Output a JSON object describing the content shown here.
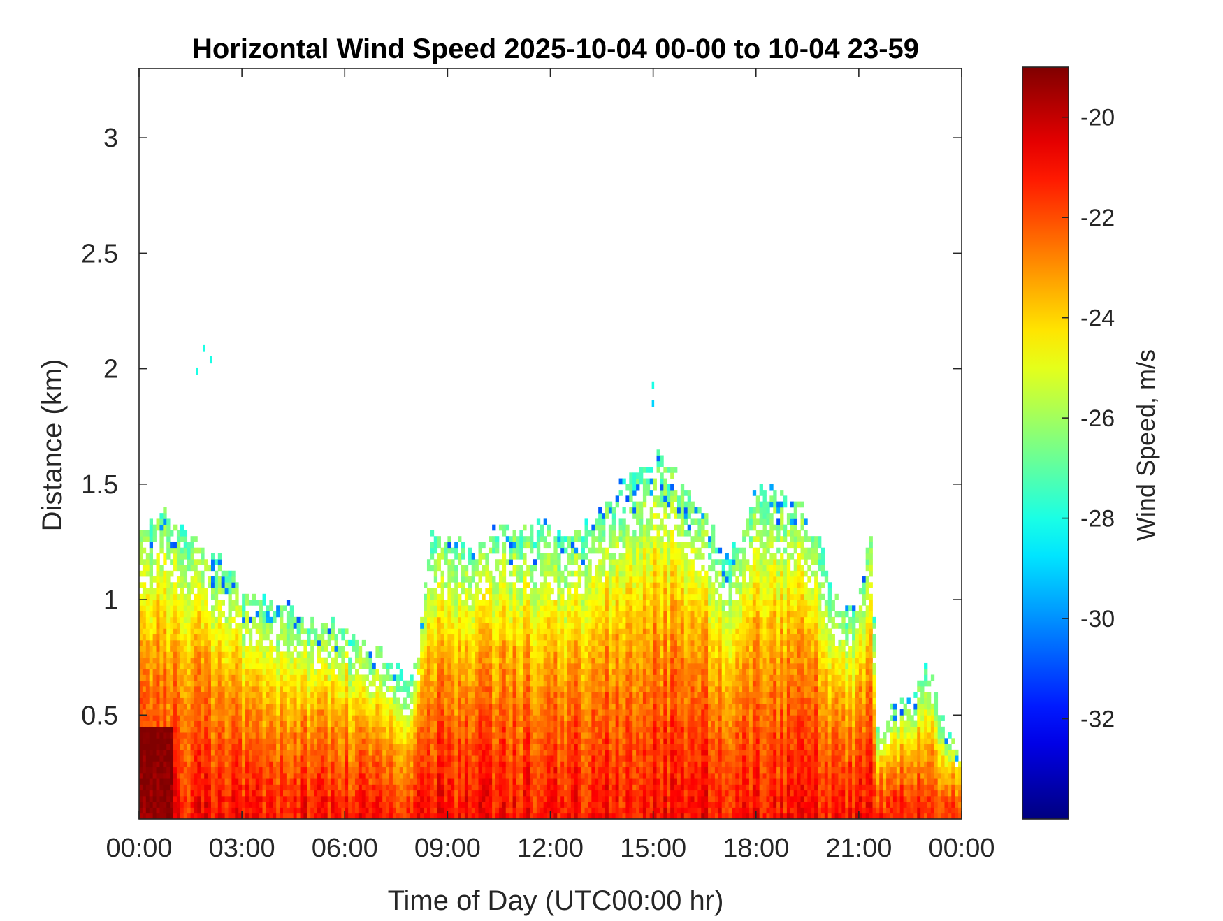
{
  "chart_data": {
    "type": "heatmap",
    "title": "Horizontal Wind Speed 2025-10-04 00-00 to 10-04 23-59",
    "xlabel": "Time of Day (UTC00:00 hr)",
    "ylabel": "Distance (km)",
    "xlim": [
      0,
      24
    ],
    "ylim": [
      0.05,
      3.3
    ],
    "x_ticks": [
      0,
      3,
      6,
      9,
      12,
      15,
      18,
      21,
      24
    ],
    "x_tick_labels": [
      "00:00",
      "03:00",
      "06:00",
      "09:00",
      "12:00",
      "15:00",
      "18:00",
      "21:00",
      "00:00"
    ],
    "y_ticks": [
      0.5,
      1,
      1.5,
      2,
      2.5,
      3
    ],
    "y_tick_labels": [
      "0.5",
      "1",
      "1.5",
      "2",
      "2.5",
      "3"
    ],
    "colorbar": {
      "label": "Wind Speed, m/s",
      "range": [
        -34,
        -19
      ],
      "ticks": [
        -32,
        -30,
        -28,
        -26,
        -24,
        -22,
        -20
      ],
      "tick_labels": [
        "-32",
        "-30",
        "-28",
        "-26",
        "-24",
        "-22",
        "-20"
      ],
      "colormap": "jet"
    },
    "grid": false,
    "time_step_hr": 0.1,
    "range_gate_km": 0.025,
    "data_top_km": [
      [
        0.0,
        1.32
      ],
      [
        0.8,
        1.36
      ],
      [
        1.5,
        1.28
      ],
      [
        3.0,
        1.05
      ],
      [
        4.5,
        0.93
      ],
      [
        6.0,
        0.85
      ],
      [
        7.5,
        0.7
      ],
      [
        8.0,
        0.62
      ],
      [
        8.5,
        1.3
      ],
      [
        9.5,
        1.2
      ],
      [
        10.5,
        1.3
      ],
      [
        11.5,
        1.32
      ],
      [
        12.5,
        1.28
      ],
      [
        13.5,
        1.38
      ],
      [
        14.5,
        1.55
      ],
      [
        15.0,
        1.62
      ],
      [
        16.0,
        1.48
      ],
      [
        16.5,
        1.35
      ],
      [
        17.0,
        1.2
      ],
      [
        17.5,
        1.22
      ],
      [
        18.0,
        1.48
      ],
      [
        18.5,
        1.48
      ],
      [
        19.0,
        1.45
      ],
      [
        19.5,
        1.38
      ],
      [
        20.0,
        1.15
      ],
      [
        20.5,
        0.95
      ],
      [
        21.0,
        1.0
      ],
      [
        21.4,
        1.3
      ],
      [
        21.5,
        0.45
      ],
      [
        22.5,
        0.55
      ],
      [
        23.0,
        0.7
      ],
      [
        23.5,
        0.45
      ],
      [
        24.0,
        0.3
      ]
    ],
    "wind_speed_profile_m_s": [
      [
        0.05,
        -21.0
      ],
      [
        0.4,
        -22.0
      ],
      [
        0.8,
        -23.5
      ],
      [
        1.2,
        -26.0
      ],
      [
        1.5,
        -28.0
      ]
    ],
    "strong_wind_core": {
      "time_hr": [
        0,
        1
      ],
      "distance_km": [
        0.05,
        0.45
      ],
      "wind_speed_m_s": -19.5
    },
    "isolated_points": [
      {
        "time_hr": 1.9,
        "distance_km": 2.08,
        "wind_speed_m_s": -28
      },
      {
        "time_hr": 2.1,
        "distance_km": 2.03,
        "wind_speed_m_s": -28
      },
      {
        "time_hr": 1.7,
        "distance_km": 1.98,
        "wind_speed_m_s": -28
      },
      {
        "time_hr": 15.0,
        "distance_km": 1.92,
        "wind_speed_m_s": -28
      },
      {
        "time_hr": 15.0,
        "distance_km": 1.84,
        "wind_speed_m_s": -29
      }
    ]
  }
}
